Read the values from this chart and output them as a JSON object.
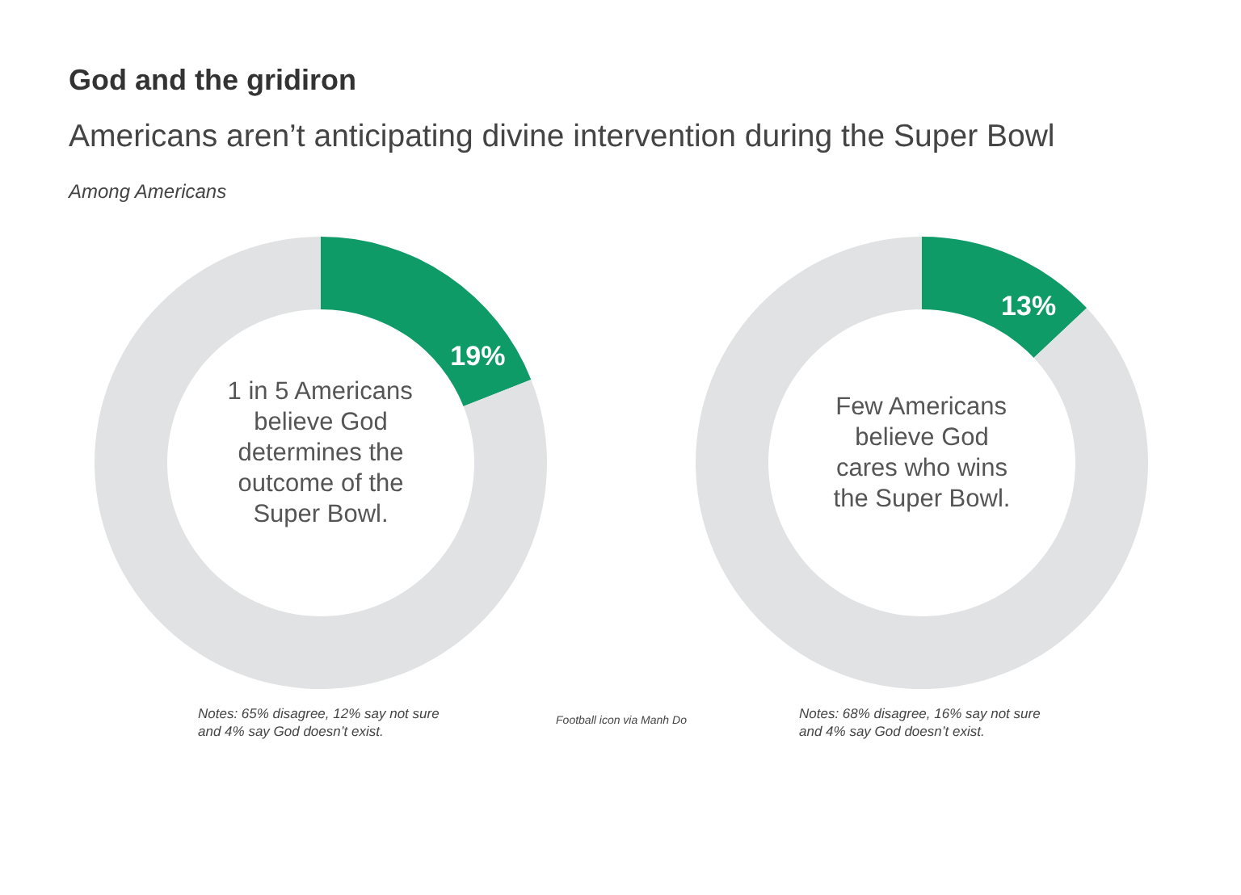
{
  "chart_data": [
    {
      "type": "donut",
      "title": "God and the gridiron",
      "subtitle": "Americans aren’t anticipating divine intervention during the Super Bowl",
      "categories": [
        null,
        null
      ],
      "values": [
        19,
        81
      ],
      "colors": [
        "#0f9b68",
        "#e1e2e3"
      ],
      "value_labels": [
        "19%",
        null
      ],
      "annotations": [
        "Among Americans",
        "1 in 5 Americans believe God determines the outcome of the Super Bowl.",
        "Notes: 65% disagree, 12% say not sure and 4% say God doesn’t exist.",
        "Football icon via Manh Do"
      ]
    },
    {
      "type": "donut",
      "categories": [
        null,
        null
      ],
      "values": [
        13,
        87
      ],
      "colors": [
        "#0f9b68",
        "#e1e2e3"
      ],
      "value_labels": [
        "13%",
        null
      ],
      "annotations": [
        "Few Americans believe God cares who wins the Super Bowl.",
        "Notes: 68% disagree, 16% say not sure and 4% say God doesn’t exist."
      ]
    }
  ]
}
